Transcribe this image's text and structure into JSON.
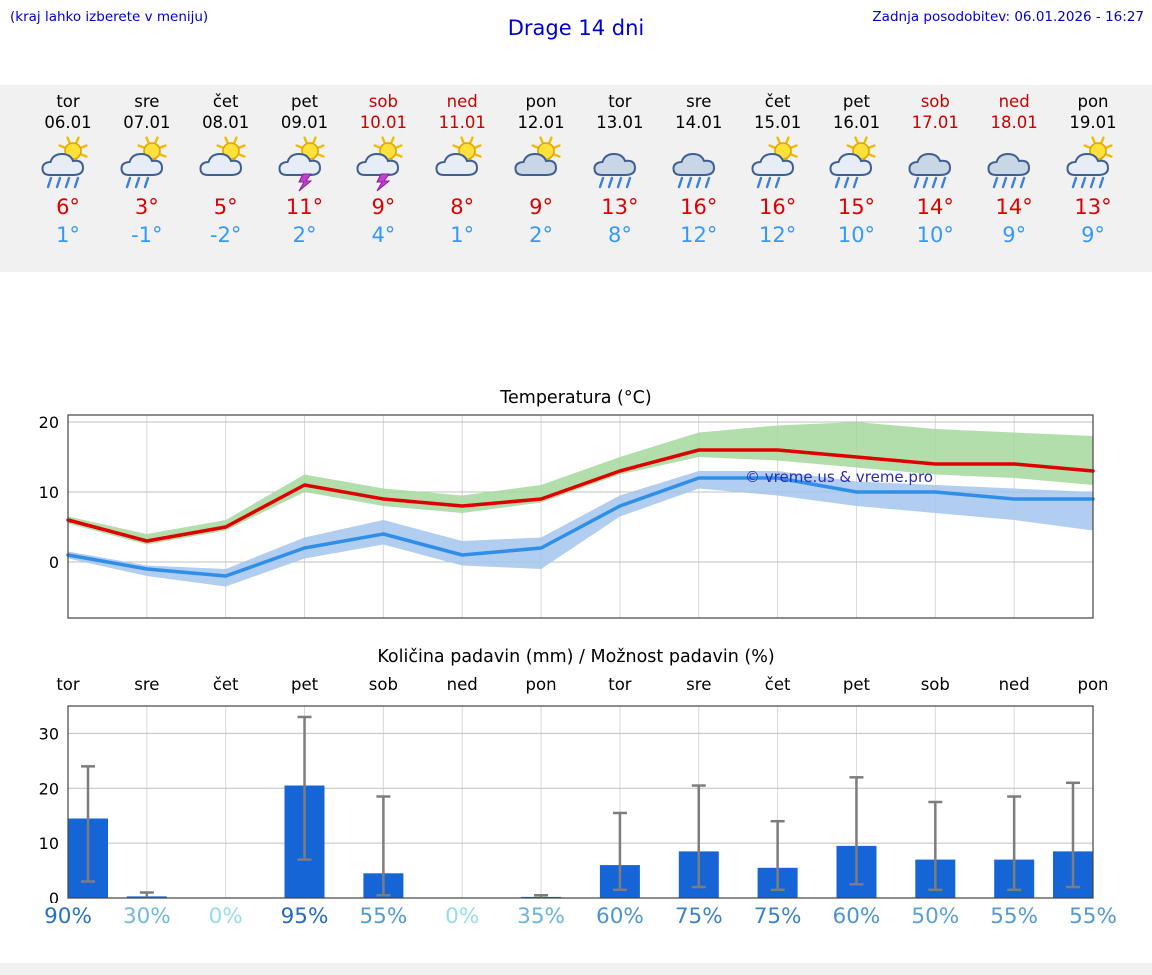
{
  "header": {
    "left_note": "(kraj lahko izberete v meniju)",
    "title": "Drage 14 dni",
    "updated": "Zadnja posodobitev: 06.01.2026 - 16:27"
  },
  "colors": {
    "link_blue": "#0000cc",
    "high_red": "#e00000",
    "low_blue": "#3399ff",
    "weekend_red": "#cc0000",
    "bar_blue": "#1565d6",
    "max_line_red": "#e00000",
    "min_line_blue": "#2f8fe8",
    "max_band_green": "#a4d89e",
    "min_band_blue": "#a3c4ec",
    "strip_bg": "#f1f1f1",
    "watermark_blue": "#2a2ab8"
  },
  "days": [
    {
      "name": "tor",
      "date": "06.01",
      "weekend": false,
      "icon": "sun-cloud-rain3",
      "high": "6°",
      "low": "1°"
    },
    {
      "name": "sre",
      "date": "07.01",
      "weekend": false,
      "icon": "sun-cloud-rain2",
      "high": "3°",
      "low": "-1°"
    },
    {
      "name": "čet",
      "date": "08.01",
      "weekend": false,
      "icon": "sun-cloud",
      "high": "5°",
      "low": "-2°"
    },
    {
      "name": "pet",
      "date": "09.01",
      "weekend": false,
      "icon": "sun-cloud-bolt",
      "high": "11°",
      "low": "2°"
    },
    {
      "name": "sob",
      "date": "10.01",
      "weekend": true,
      "icon": "sun-cloud-bolt",
      "high": "9°",
      "low": "4°"
    },
    {
      "name": "ned",
      "date": "11.01",
      "weekend": true,
      "icon": "sun-cloud",
      "high": "8°",
      "low": "1°"
    },
    {
      "name": "pon",
      "date": "12.01",
      "weekend": false,
      "icon": "cloud-sun",
      "high": "9°",
      "low": "2°"
    },
    {
      "name": "tor",
      "date": "13.01",
      "weekend": false,
      "icon": "cloud-rain3",
      "high": "13°",
      "low": "8°"
    },
    {
      "name": "sre",
      "date": "14.01",
      "weekend": false,
      "icon": "cloud-rain3",
      "high": "16°",
      "low": "12°"
    },
    {
      "name": "čet",
      "date": "15.01",
      "weekend": false,
      "icon": "sun-cloud-rain2",
      "high": "16°",
      "low": "12°"
    },
    {
      "name": "pet",
      "date": "16.01",
      "weekend": false,
      "icon": "sun-cloud-rain2",
      "high": "15°",
      "low": "10°"
    },
    {
      "name": "sob",
      "date": "17.01",
      "weekend": true,
      "icon": "cloud-rain3",
      "high": "14°",
      "low": "10°"
    },
    {
      "name": "ned",
      "date": "18.01",
      "weekend": true,
      "icon": "cloud-rain3",
      "high": "14°",
      "low": "9°"
    },
    {
      "name": "pon",
      "date": "19.01",
      "weekend": false,
      "icon": "sun-cloud-rain3",
      "high": "13°",
      "low": "9°"
    }
  ],
  "chart_data": [
    {
      "type": "line",
      "title": "Temperatura (°C)",
      "categories": [
        "tor 06.01",
        "sre 07.01",
        "čet 08.01",
        "pet 09.01",
        "sob 10.01",
        "ned 11.01",
        "pon 12.01",
        "tor 13.01",
        "sre 14.01",
        "čet 15.01",
        "pet 16.01",
        "sob 17.01",
        "ned 18.01",
        "pon 19.01"
      ],
      "series": [
        {
          "name": "max temperature",
          "color": "#e00000",
          "band_color": "#a4d89e",
          "values": [
            6,
            3,
            5,
            11,
            9,
            8,
            9,
            13,
            16,
            16,
            15,
            14,
            14,
            13
          ],
          "band_hi": [
            6.5,
            4,
            6,
            12.5,
            10.5,
            9.5,
            11,
            15,
            18.5,
            19.5,
            20,
            19,
            18.5,
            18
          ],
          "band_lo": [
            5.5,
            2.5,
            4.5,
            10,
            8,
            7,
            8.5,
            12.5,
            15,
            14.5,
            13.5,
            12.5,
            12,
            11
          ]
        },
        {
          "name": "min temperature",
          "color": "#2f8fe8",
          "band_color": "#a3c4ec",
          "values": [
            1,
            -1,
            -2,
            2,
            4,
            1,
            2,
            8,
            12,
            12,
            10,
            10,
            9,
            9
          ],
          "band_hi": [
            1.5,
            -0.5,
            -1,
            3.5,
            6,
            3,
            3.5,
            9.5,
            13,
            13,
            11.5,
            11,
            10.5,
            10
          ],
          "band_lo": [
            0.5,
            -2,
            -3.5,
            0.5,
            2.5,
            -0.5,
            -1,
            6.5,
            10.5,
            9.5,
            8,
            7,
            6,
            4.5
          ]
        }
      ],
      "yticks": [
        0,
        10,
        20
      ],
      "ylim": [
        -8,
        21
      ],
      "grid": true,
      "legend": "none",
      "watermark": "© vreme.us & vreme.pro"
    },
    {
      "type": "bar",
      "title": "Količina padavin (mm) / Možnost padavin (%)",
      "categories": [
        "tor",
        "sre",
        "čet",
        "pet",
        "sob",
        "ned",
        "pon",
        "tor",
        "sre",
        "čet",
        "pet",
        "sob",
        "ned",
        "pon"
      ],
      "values": [
        14.5,
        0.3,
        0,
        20.5,
        4.5,
        0,
        0.2,
        6,
        8.5,
        5.5,
        9.5,
        7,
        7,
        8.5
      ],
      "whisker_hi": [
        24,
        1,
        0,
        33,
        18.5,
        0,
        0.5,
        15.5,
        20.5,
        14,
        22,
        17.5,
        18.5,
        21
      ],
      "whisker_lo": [
        3,
        0,
        0,
        7,
        0.5,
        0,
        0,
        1.5,
        2,
        1.5,
        2.5,
        1.5,
        1.5,
        2
      ],
      "probabilities_pct": [
        90,
        30,
        0,
        95,
        55,
        0,
        35,
        60,
        75,
        75,
        60,
        50,
        55,
        55
      ],
      "probability_labels": [
        "90%",
        "30%",
        "0%",
        "95%",
        "55%",
        "0%",
        "35%",
        "60%",
        "75%",
        "75%",
        "60%",
        "50%",
        "55%",
        "55%"
      ],
      "yticks": [
        0,
        10,
        20,
        30
      ],
      "ylim": [
        0,
        35
      ],
      "xlabel": "",
      "ylabel": "",
      "grid": true
    }
  ]
}
